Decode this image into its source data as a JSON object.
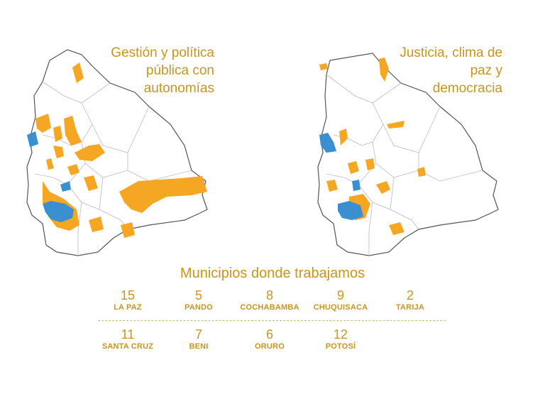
{
  "maps": [
    {
      "title": "Gestión y política pública con autonomías"
    },
    {
      "title": "Justicia, clima de paz y democracia"
    }
  ],
  "colors": {
    "orange": "#f5a623",
    "blue": "#3a8fd0",
    "outline": "#555555",
    "text": "#c8951f"
  },
  "stats": {
    "heading": "Municipios donde trabajamos",
    "row1": [
      {
        "number": "15",
        "department": "LA PAZ"
      },
      {
        "number": "5",
        "department": "PANDO"
      },
      {
        "number": "8",
        "department": "COCHABAMBA"
      },
      {
        "number": "9",
        "department": "CHUQUISACA"
      },
      {
        "number": "2",
        "department": "TARIJA"
      }
    ],
    "row2": [
      {
        "number": "11",
        "department": "SANTA CRUZ"
      },
      {
        "number": "7",
        "department": "BENI"
      },
      {
        "number": "6",
        "department": "ORURO"
      },
      {
        "number": "12",
        "department": "POTOSÍ"
      }
    ]
  }
}
